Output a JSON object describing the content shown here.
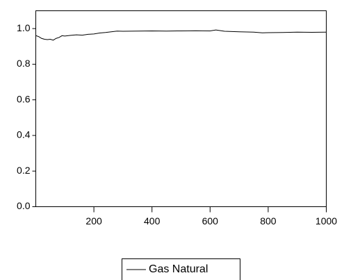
{
  "chart_data": {
    "type": "line",
    "x": [
      1,
      10,
      20,
      30,
      40,
      50,
      60,
      70,
      80,
      90,
      100,
      120,
      140,
      160,
      180,
      200,
      220,
      240,
      260,
      280,
      300,
      350,
      400,
      450,
      500,
      550,
      600,
      620,
      650,
      700,
      750,
      780,
      800,
      850,
      900,
      950,
      1000
    ],
    "series": [
      {
        "name": "Gas Natural",
        "color": "#000000",
        "values": [
          0.96,
          0.955,
          0.945,
          0.94,
          0.938,
          0.94,
          0.935,
          0.945,
          0.95,
          0.96,
          0.958,
          0.962,
          0.965,
          0.963,
          0.968,
          0.97,
          0.975,
          0.978,
          0.982,
          0.986,
          0.985,
          0.986,
          0.987,
          0.986,
          0.987,
          0.988,
          0.987,
          0.992,
          0.985,
          0.982,
          0.98,
          0.976,
          0.977,
          0.978,
          0.98,
          0.979,
          0.98
        ]
      }
    ],
    "xlim": [
      0,
      1000
    ],
    "xticks": [
      200,
      400,
      600,
      800,
      1000
    ],
    "ylim": [
      0,
      1.1
    ],
    "yticks": [
      {
        "value": 0,
        "label": "0.0"
      },
      0.2,
      0.4,
      0.6,
      0.8,
      {
        "value": 1,
        "label": "1.0"
      }
    ],
    "grid": false
  }
}
